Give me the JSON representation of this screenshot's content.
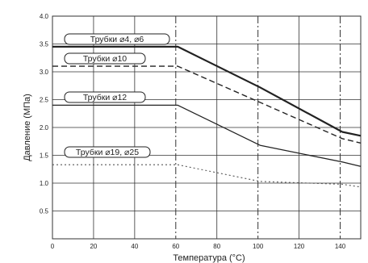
{
  "chart_data": {
    "type": "line",
    "title": "",
    "xlabel": "Температура (°C)",
    "ylabel": "Давление (МПа)",
    "xlim": [
      0,
      150
    ],
    "ylim": [
      0,
      4.0
    ],
    "x_ticks": [
      0,
      20,
      40,
      60,
      80,
      100,
      120,
      140
    ],
    "y_ticks": [
      0.5,
      1.0,
      1.5,
      2.0,
      2.5,
      3.0,
      3.5,
      4.0
    ],
    "y_tick_labels": [
      "0.5",
      "1.0",
      "1.5",
      "2.0",
      "2.5",
      "3.0",
      "3.5",
      "4.0"
    ],
    "grid": true,
    "dash_dot_gridlines_x": [
      60,
      100,
      140
    ],
    "series": [
      {
        "name": "Трубки ⌀4, ⌀6",
        "style": "solid-thick",
        "color": "#222222",
        "points": [
          [
            0,
            3.45
          ],
          [
            61,
            3.45
          ],
          [
            101,
            2.72
          ],
          [
            141,
            1.92
          ],
          [
            150,
            1.85
          ]
        ]
      },
      {
        "name": "Трубки ⌀10",
        "style": "dashed",
        "color": "#222222",
        "points": [
          [
            0,
            3.1
          ],
          [
            61,
            3.1
          ],
          [
            101,
            2.45
          ],
          [
            141,
            1.8
          ],
          [
            150,
            1.72
          ]
        ]
      },
      {
        "name": "Трубки ⌀12",
        "style": "solid",
        "color": "#222222",
        "points": [
          [
            0,
            2.4
          ],
          [
            61,
            2.4
          ],
          [
            101,
            1.68
          ],
          [
            141,
            1.38
          ],
          [
            150,
            1.3
          ]
        ]
      },
      {
        "name": "Трубки ⌀19, ⌀25",
        "style": "dotted",
        "color": "#555555",
        "points": [
          [
            0,
            1.33
          ],
          [
            61,
            1.33
          ],
          [
            101,
            1.03
          ],
          [
            141,
            0.98
          ],
          [
            150,
            0.93
          ]
        ]
      }
    ]
  }
}
